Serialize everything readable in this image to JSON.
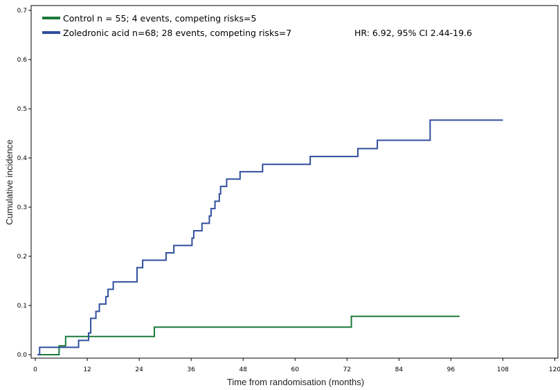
{
  "chart_data": {
    "type": "line",
    "xlabel": "Time from randomisation (months)",
    "ylabel": "Cumulative incidence",
    "xlim": [
      0,
      120
    ],
    "ylim": [
      0,
      0.7
    ],
    "x_ticks": [
      0,
      12,
      24,
      36,
      48,
      60,
      72,
      84,
      96,
      108,
      120
    ],
    "x_tick_labels": [
      "0",
      "12",
      "24",
      "36",
      "48",
      "60",
      "72",
      "84",
      "96",
      "108",
      "120"
    ],
    "y_ticks": [
      0.0,
      0.1,
      0.2,
      0.3,
      0.4,
      0.5,
      0.6,
      0.7
    ],
    "y_tick_labels": [
      "0.0",
      "0.1",
      "0.2",
      "0.3",
      "0.4",
      "0.5",
      "0.6",
      "0.7"
    ],
    "grid": false,
    "legend_position": "top-left",
    "annotation": "HR: 6.92, 95% CI 2.44-19.6",
    "series": [
      {
        "name": "Control n = 55; 4 events, competing risks=5",
        "color": "#1a7a3a",
        "points": [
          [
            0.5,
            0
          ],
          [
            5.5,
            0
          ],
          [
            5.5,
            0.018
          ],
          [
            7,
            0.018
          ],
          [
            7,
            0.037
          ],
          [
            27.5,
            0.037
          ],
          [
            27.5,
            0.056
          ],
          [
            73,
            0.056
          ],
          [
            73,
            0.078
          ],
          [
            98,
            0.078
          ]
        ]
      },
      {
        "name": "Zoledronic acid n=68; 28 events, competing risks=7",
        "color": "#2f4e9e",
        "points": [
          [
            0.5,
            0
          ],
          [
            1,
            0
          ],
          [
            1,
            0.015
          ],
          [
            10,
            0.015
          ],
          [
            10,
            0.029
          ],
          [
            12.3,
            0.029
          ],
          [
            12.3,
            0.044
          ],
          [
            12.8,
            0.044
          ],
          [
            12.8,
            0.074
          ],
          [
            14,
            0.074
          ],
          [
            14,
            0.088
          ],
          [
            14.8,
            0.088
          ],
          [
            14.8,
            0.103
          ],
          [
            16.3,
            0.103
          ],
          [
            16.3,
            0.118
          ],
          [
            16.8,
            0.118
          ],
          [
            16.8,
            0.133
          ],
          [
            18,
            0.133
          ],
          [
            18,
            0.148
          ],
          [
            23.5,
            0.148
          ],
          [
            23.5,
            0.177
          ],
          [
            24.8,
            0.177
          ],
          [
            24.8,
            0.192
          ],
          [
            30.2,
            0.192
          ],
          [
            30.2,
            0.207
          ],
          [
            32,
            0.207
          ],
          [
            32,
            0.222
          ],
          [
            36.2,
            0.222
          ],
          [
            36.2,
            0.237
          ],
          [
            36.6,
            0.237
          ],
          [
            36.6,
            0.252
          ],
          [
            38.5,
            0.252
          ],
          [
            38.5,
            0.267
          ],
          [
            40.2,
            0.267
          ],
          [
            40.2,
            0.282
          ],
          [
            40.6,
            0.282
          ],
          [
            40.6,
            0.297
          ],
          [
            41.5,
            0.297
          ],
          [
            41.5,
            0.312
          ],
          [
            42.5,
            0.312
          ],
          [
            42.5,
            0.327
          ],
          [
            42.8,
            0.327
          ],
          [
            42.8,
            0.342
          ],
          [
            44.2,
            0.342
          ],
          [
            44.2,
            0.357
          ],
          [
            47.3,
            0.357
          ],
          [
            47.3,
            0.372
          ],
          [
            52.5,
            0.372
          ],
          [
            52.5,
            0.387
          ],
          [
            63.5,
            0.387
          ],
          [
            63.5,
            0.403
          ],
          [
            74.5,
            0.403
          ],
          [
            74.5,
            0.419
          ],
          [
            79,
            0.419
          ],
          [
            79,
            0.436
          ],
          [
            91.2,
            0.436
          ],
          [
            91.2,
            0.477
          ],
          [
            108,
            0.477
          ]
        ]
      }
    ]
  }
}
